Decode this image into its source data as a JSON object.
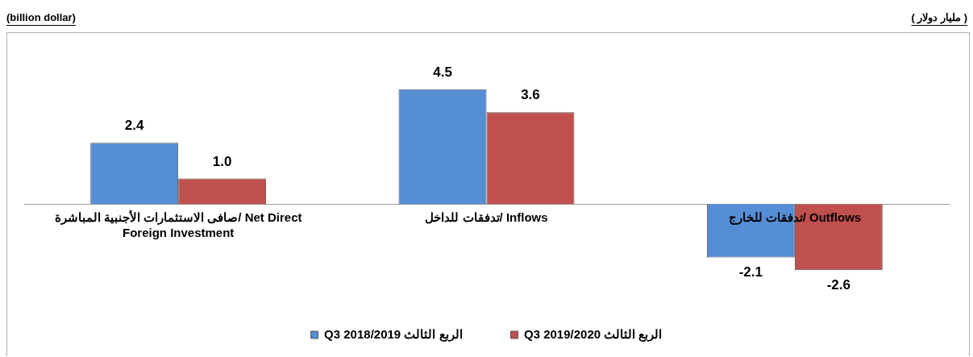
{
  "chart_data": {
    "type": "bar",
    "categories": [
      "صافى الاستثمارات الأجنبية المباشرة/ Net Direct Foreign Investment",
      "تدفقات للداخل/ Inflows",
      "تدفقات للخارج/ Outflows"
    ],
    "series": [
      {
        "name": "Q3 2018/2019 الربع الثالث",
        "color": "#558ed5",
        "values": [
          2.4,
          4.5,
          -2.1
        ],
        "value_labels": [
          "2.4",
          "4.5",
          "-2.1"
        ]
      },
      {
        "name": "Q3 2019/2020 الربع الثالث",
        "color": "#c0504d",
        "values": [
          1.0,
          3.6,
          -2.6
        ],
        "value_labels": [
          "1.0",
          "3.6",
          "-2.6"
        ]
      }
    ],
    "annotations": [
      "(billion dollar)",
      "( مليار دولار )"
    ],
    "legend": "bottom",
    "grid": false
  }
}
